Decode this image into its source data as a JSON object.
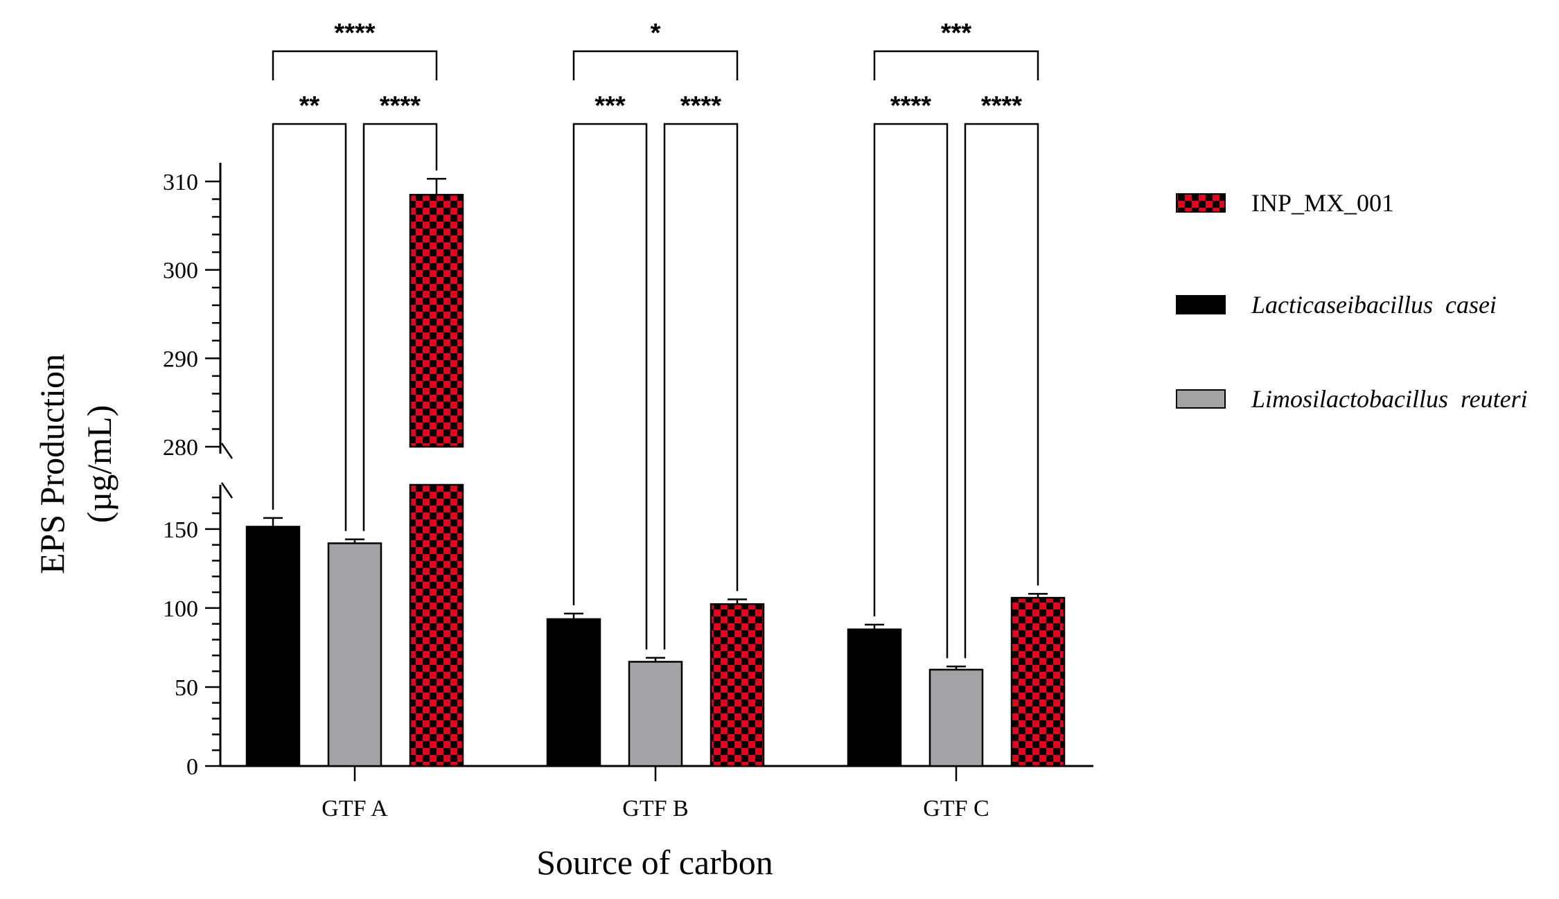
{
  "chart_data": {
    "type": "bar",
    "title": "",
    "xlabel": "Source of carbon",
    "ylabel_line1": "EPS Production",
    "ylabel_line2": "(µg/mL)",
    "categories": [
      "GTF A",
      "GTF B",
      "GTF C"
    ],
    "series": [
      {
        "name": "Lacticaseibacillus  casei",
        "pattern": "solid",
        "color": "#000000",
        "values": [
          151.5,
          93.0,
          86.5
        ],
        "errors": [
          5.5,
          3.5,
          3.0
        ]
      },
      {
        "name": "Limosilactobacillus  reuteri",
        "pattern": "solid",
        "color": "#a3a3a6",
        "values": [
          141.0,
          66.0,
          61.0
        ],
        "errors": [
          2.5,
          2.5,
          2.0
        ]
      },
      {
        "name": "INP_MX_001",
        "pattern": "checker",
        "color": "#e8001c",
        "color2": "#000000",
        "values": [
          308.5,
          102.5,
          106.5
        ],
        "errors": [
          1.8,
          3.0,
          2.5
        ]
      }
    ],
    "legend": {
      "placement": "right",
      "order": [
        {
          "label": "INP_MX_001",
          "series": 2,
          "italic": false
        },
        {
          "label": "Lacticaseibacillus  casei",
          "series": 0,
          "italic": true
        },
        {
          "label": "Limosilactobacillus  reuteri",
          "series": 1,
          "italic": true
        }
      ]
    },
    "y_axis": {
      "broken": true,
      "lower_segment": {
        "range": [
          0,
          178
        ],
        "ticks": [
          0,
          50,
          100,
          150
        ],
        "tick_labels": [
          "0",
          "50",
          "100",
          "150"
        ],
        "minor_step": 10
      },
      "upper_segment": {
        "range": [
          280,
          312
        ],
        "ticks": [
          280,
          290,
          300,
          310
        ],
        "tick_labels": [
          "280",
          "290",
          "300",
          "310"
        ],
        "minor_step": 2
      }
    },
    "significance": [
      {
        "category": "GTF A",
        "from": 0,
        "to": 1,
        "label": "**",
        "level": 1
      },
      {
        "category": "GTF A",
        "from": 1,
        "to": 2,
        "label": "****",
        "level": 1
      },
      {
        "category": "GTF A",
        "from": 0,
        "to": 2,
        "label": "****",
        "level": 2
      },
      {
        "category": "GTF B",
        "from": 0,
        "to": 1,
        "label": "***",
        "level": 1
      },
      {
        "category": "GTF B",
        "from": 1,
        "to": 2,
        "label": "****",
        "level": 1
      },
      {
        "category": "GTF B",
        "from": 0,
        "to": 2,
        "label": "*",
        "level": 2
      },
      {
        "category": "GTF C",
        "from": 0,
        "to": 1,
        "label": "****",
        "level": 1
      },
      {
        "category": "GTF C",
        "from": 1,
        "to": 2,
        "label": "****",
        "level": 1
      },
      {
        "category": "GTF C",
        "from": 0,
        "to": 2,
        "label": "***",
        "level": 2
      }
    ]
  }
}
